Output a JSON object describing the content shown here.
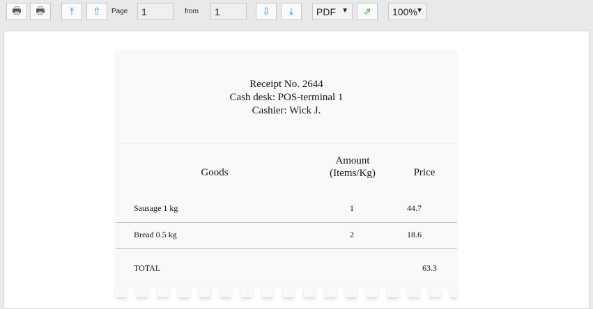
{
  "toolbar": {
    "page_label": "Page",
    "page_value": "1",
    "from_label": "from",
    "from_value": "1",
    "format": "PDF",
    "zoom": "100%"
  },
  "receipt": {
    "header": [
      "Receipt No. 2644",
      "Cash desk: POS-terminal 1",
      "Cashier: Wick J."
    ],
    "columns": {
      "goods": "Goods",
      "amount": "Amount",
      "amount_unit": "(Items/Kg)",
      "price": "Price"
    },
    "rows": [
      {
        "goods": "Sausage 1 kg",
        "amount": "1",
        "price": "44.7"
      },
      {
        "goods": "Bread 0.5 kg",
        "amount": "2",
        "price": "18.6"
      }
    ],
    "total_label": "TOTAL",
    "total_value": "63.3"
  }
}
